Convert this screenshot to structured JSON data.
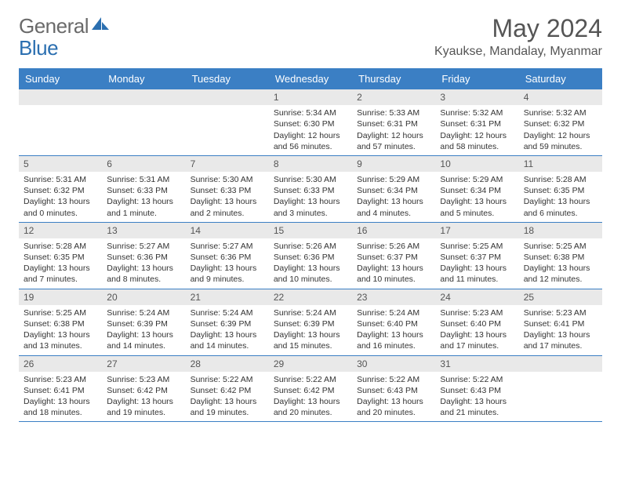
{
  "brand": {
    "name_part1": "General",
    "name_part2": "Blue",
    "color_gray": "#6a6a6a",
    "color_blue": "#2b6fb0"
  },
  "title": "May 2024",
  "location": "Kyaukse, Mandalay, Myanmar",
  "theme": {
    "header_bg": "#3b7fc4",
    "header_text": "#ffffff",
    "daynum_bg": "#e9e9e9",
    "border": "#3b7fc4",
    "text": "#333333"
  },
  "day_names": [
    "Sunday",
    "Monday",
    "Tuesday",
    "Wednesday",
    "Thursday",
    "Friday",
    "Saturday"
  ],
  "weeks": [
    [
      {
        "n": "",
        "sr": "",
        "ss": "",
        "dl": ""
      },
      {
        "n": "",
        "sr": "",
        "ss": "",
        "dl": ""
      },
      {
        "n": "",
        "sr": "",
        "ss": "",
        "dl": ""
      },
      {
        "n": "1",
        "sr": "Sunrise: 5:34 AM",
        "ss": "Sunset: 6:30 PM",
        "dl": "Daylight: 12 hours and 56 minutes."
      },
      {
        "n": "2",
        "sr": "Sunrise: 5:33 AM",
        "ss": "Sunset: 6:31 PM",
        "dl": "Daylight: 12 hours and 57 minutes."
      },
      {
        "n": "3",
        "sr": "Sunrise: 5:32 AM",
        "ss": "Sunset: 6:31 PM",
        "dl": "Daylight: 12 hours and 58 minutes."
      },
      {
        "n": "4",
        "sr": "Sunrise: 5:32 AM",
        "ss": "Sunset: 6:32 PM",
        "dl": "Daylight: 12 hours and 59 minutes."
      }
    ],
    [
      {
        "n": "5",
        "sr": "Sunrise: 5:31 AM",
        "ss": "Sunset: 6:32 PM",
        "dl": "Daylight: 13 hours and 0 minutes."
      },
      {
        "n": "6",
        "sr": "Sunrise: 5:31 AM",
        "ss": "Sunset: 6:33 PM",
        "dl": "Daylight: 13 hours and 1 minute."
      },
      {
        "n": "7",
        "sr": "Sunrise: 5:30 AM",
        "ss": "Sunset: 6:33 PM",
        "dl": "Daylight: 13 hours and 2 minutes."
      },
      {
        "n": "8",
        "sr": "Sunrise: 5:30 AM",
        "ss": "Sunset: 6:33 PM",
        "dl": "Daylight: 13 hours and 3 minutes."
      },
      {
        "n": "9",
        "sr": "Sunrise: 5:29 AM",
        "ss": "Sunset: 6:34 PM",
        "dl": "Daylight: 13 hours and 4 minutes."
      },
      {
        "n": "10",
        "sr": "Sunrise: 5:29 AM",
        "ss": "Sunset: 6:34 PM",
        "dl": "Daylight: 13 hours and 5 minutes."
      },
      {
        "n": "11",
        "sr": "Sunrise: 5:28 AM",
        "ss": "Sunset: 6:35 PM",
        "dl": "Daylight: 13 hours and 6 minutes."
      }
    ],
    [
      {
        "n": "12",
        "sr": "Sunrise: 5:28 AM",
        "ss": "Sunset: 6:35 PM",
        "dl": "Daylight: 13 hours and 7 minutes."
      },
      {
        "n": "13",
        "sr": "Sunrise: 5:27 AM",
        "ss": "Sunset: 6:36 PM",
        "dl": "Daylight: 13 hours and 8 minutes."
      },
      {
        "n": "14",
        "sr": "Sunrise: 5:27 AM",
        "ss": "Sunset: 6:36 PM",
        "dl": "Daylight: 13 hours and 9 minutes."
      },
      {
        "n": "15",
        "sr": "Sunrise: 5:26 AM",
        "ss": "Sunset: 6:36 PM",
        "dl": "Daylight: 13 hours and 10 minutes."
      },
      {
        "n": "16",
        "sr": "Sunrise: 5:26 AM",
        "ss": "Sunset: 6:37 PM",
        "dl": "Daylight: 13 hours and 10 minutes."
      },
      {
        "n": "17",
        "sr": "Sunrise: 5:25 AM",
        "ss": "Sunset: 6:37 PM",
        "dl": "Daylight: 13 hours and 11 minutes."
      },
      {
        "n": "18",
        "sr": "Sunrise: 5:25 AM",
        "ss": "Sunset: 6:38 PM",
        "dl": "Daylight: 13 hours and 12 minutes."
      }
    ],
    [
      {
        "n": "19",
        "sr": "Sunrise: 5:25 AM",
        "ss": "Sunset: 6:38 PM",
        "dl": "Daylight: 13 hours and 13 minutes."
      },
      {
        "n": "20",
        "sr": "Sunrise: 5:24 AM",
        "ss": "Sunset: 6:39 PM",
        "dl": "Daylight: 13 hours and 14 minutes."
      },
      {
        "n": "21",
        "sr": "Sunrise: 5:24 AM",
        "ss": "Sunset: 6:39 PM",
        "dl": "Daylight: 13 hours and 14 minutes."
      },
      {
        "n": "22",
        "sr": "Sunrise: 5:24 AM",
        "ss": "Sunset: 6:39 PM",
        "dl": "Daylight: 13 hours and 15 minutes."
      },
      {
        "n": "23",
        "sr": "Sunrise: 5:24 AM",
        "ss": "Sunset: 6:40 PM",
        "dl": "Daylight: 13 hours and 16 minutes."
      },
      {
        "n": "24",
        "sr": "Sunrise: 5:23 AM",
        "ss": "Sunset: 6:40 PM",
        "dl": "Daylight: 13 hours and 17 minutes."
      },
      {
        "n": "25",
        "sr": "Sunrise: 5:23 AM",
        "ss": "Sunset: 6:41 PM",
        "dl": "Daylight: 13 hours and 17 minutes."
      }
    ],
    [
      {
        "n": "26",
        "sr": "Sunrise: 5:23 AM",
        "ss": "Sunset: 6:41 PM",
        "dl": "Daylight: 13 hours and 18 minutes."
      },
      {
        "n": "27",
        "sr": "Sunrise: 5:23 AM",
        "ss": "Sunset: 6:42 PM",
        "dl": "Daylight: 13 hours and 19 minutes."
      },
      {
        "n": "28",
        "sr": "Sunrise: 5:22 AM",
        "ss": "Sunset: 6:42 PM",
        "dl": "Daylight: 13 hours and 19 minutes."
      },
      {
        "n": "29",
        "sr": "Sunrise: 5:22 AM",
        "ss": "Sunset: 6:42 PM",
        "dl": "Daylight: 13 hours and 20 minutes."
      },
      {
        "n": "30",
        "sr": "Sunrise: 5:22 AM",
        "ss": "Sunset: 6:43 PM",
        "dl": "Daylight: 13 hours and 20 minutes."
      },
      {
        "n": "31",
        "sr": "Sunrise: 5:22 AM",
        "ss": "Sunset: 6:43 PM",
        "dl": "Daylight: 13 hours and 21 minutes."
      },
      {
        "n": "",
        "sr": "",
        "ss": "",
        "dl": ""
      }
    ]
  ]
}
